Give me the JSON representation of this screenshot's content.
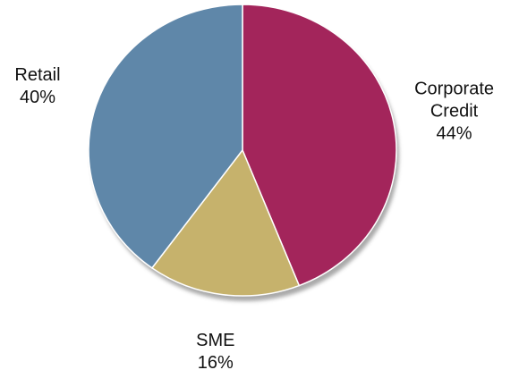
{
  "chart_data": {
    "type": "pie",
    "categories": [
      "Corporate Credit",
      "SME",
      "Retail"
    ],
    "values": [
      44,
      16,
      40
    ],
    "value_labels": [
      "44%",
      "16%",
      "40%"
    ],
    "colors": [
      "#a3255b",
      "#c6b26c",
      "#5f87a9"
    ]
  }
}
